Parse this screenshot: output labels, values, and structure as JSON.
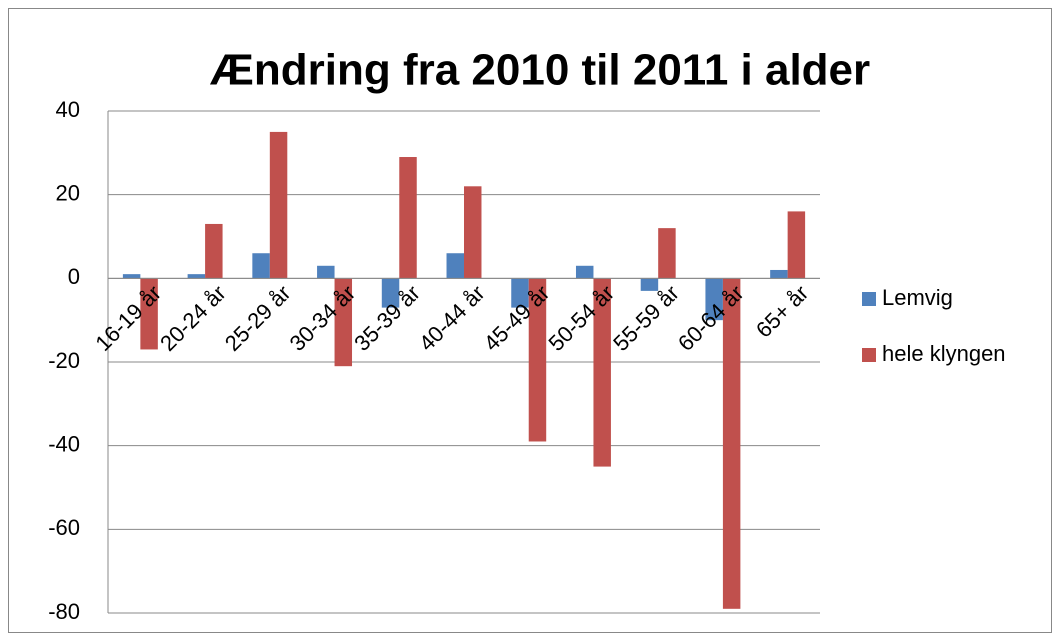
{
  "chart_data": {
    "type": "bar",
    "title": "Ændring fra 2010 til 2011 i alder",
    "categories": [
      "16-19 år",
      "20-24 år",
      "25-29 år",
      "30-34 år",
      "35-39 år",
      "40-44 år",
      "45-49 år",
      "50-54 år",
      "55-59 år",
      "60-64 år",
      "65+ år"
    ],
    "series": [
      {
        "name": "Lemvig",
        "color": "#4f81bd",
        "values": [
          1,
          1,
          6,
          3,
          -7,
          6,
          -7,
          3,
          -3,
          -10,
          2
        ]
      },
      {
        "name": "hele klyngen",
        "color": "#c0504d",
        "values": [
          -17,
          13,
          35,
          -21,
          29,
          22,
          -39,
          -45,
          12,
          -79,
          16
        ]
      }
    ],
    "ylim": [
      -80,
      40
    ],
    "yticks": [
      -80,
      -60,
      -40,
      -20,
      0,
      20,
      40
    ],
    "grid": true,
    "legend": "right"
  }
}
